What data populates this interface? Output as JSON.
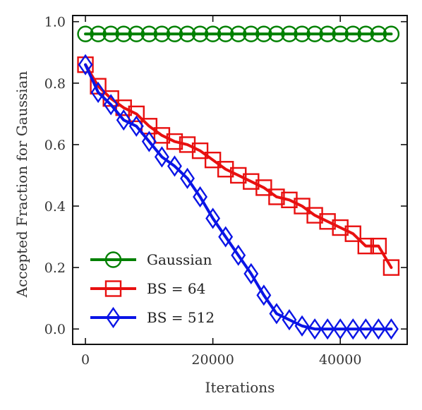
{
  "chart_data": {
    "type": "line",
    "title": "",
    "xlabel": "Iterations",
    "ylabel": "Accepted Fraction for Gaussian",
    "xlim": [
      -2000,
      50500
    ],
    "ylim": [
      -0.05,
      1.02
    ],
    "xticks": [
      0,
      20000,
      40000
    ],
    "xtick_labels": [
      "0",
      "20000",
      "40000"
    ],
    "yticks": [
      0.0,
      0.2,
      0.4,
      0.6,
      0.8,
      1.0
    ],
    "ytick_labels": [
      "0.0",
      "0.2",
      "0.4",
      "0.6",
      "0.8",
      "1.0"
    ],
    "grid": false,
    "legend_position": "bottom-left",
    "x": [
      0,
      2000,
      4000,
      6000,
      8000,
      10000,
      12000,
      14000,
      16000,
      18000,
      20000,
      22000,
      24000,
      26000,
      28000,
      30000,
      32000,
      34000,
      36000,
      38000,
      40000,
      42000,
      44000,
      46000,
      48000
    ],
    "series": [
      {
        "name": "Gaussian",
        "color": "#008000",
        "marker": "circle",
        "values": [
          0.96,
          0.96,
          0.96,
          0.96,
          0.96,
          0.96,
          0.96,
          0.96,
          0.96,
          0.96,
          0.96,
          0.96,
          0.96,
          0.96,
          0.96,
          0.96,
          0.96,
          0.96,
          0.96,
          0.96,
          0.96,
          0.96,
          0.96,
          0.96,
          0.96
        ]
      },
      {
        "name": "BS = 64",
        "color": "#e81010",
        "marker": "square",
        "values": [
          0.86,
          0.79,
          0.75,
          0.72,
          0.7,
          0.66,
          0.63,
          0.61,
          0.6,
          0.58,
          0.55,
          0.52,
          0.5,
          0.48,
          0.46,
          0.43,
          0.42,
          0.4,
          0.37,
          0.35,
          0.33,
          0.31,
          0.27,
          0.27,
          0.2
        ]
      },
      {
        "name": "BS = 512",
        "color": "#0a14e6",
        "marker": "diamond",
        "values": [
          0.86,
          0.77,
          0.73,
          0.68,
          0.66,
          0.61,
          0.56,
          0.53,
          0.49,
          0.43,
          0.36,
          0.3,
          0.24,
          0.18,
          0.11,
          0.05,
          0.03,
          0.01,
          0.0,
          0.0,
          0.0,
          0.0,
          0.0,
          0.0,
          0.0
        ]
      }
    ]
  }
}
